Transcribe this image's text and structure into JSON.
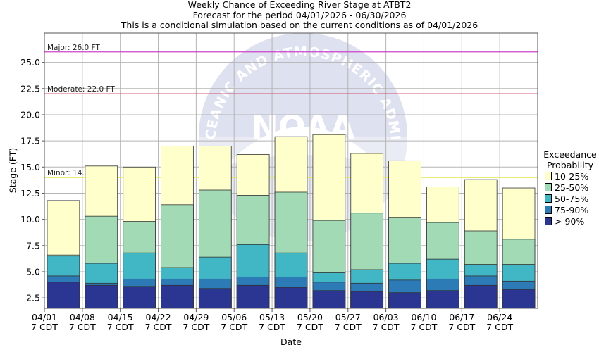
{
  "titles": {
    "line1": "Weekly Chance of Exceeding River Stage at ATBT2",
    "line2": "Forecast for the period 04/01/2026 - 06/30/2026",
    "line3": "This is a conditional simulation based on the current conditions as of 04/01/2026"
  },
  "watermark": {
    "text": "NATIONAL OCEANIC AND ATMOSPHERIC ADMINISTRATION",
    "logo": "NOAA"
  },
  "chart_data": {
    "type": "bar",
    "subtype": "stacked-exceedance",
    "xlabel": "Date",
    "ylabel": "Stage (FT)",
    "ylim": [
      1.5,
      27.8
    ],
    "yticks": [
      2.5,
      5.0,
      7.5,
      10.0,
      12.5,
      15.0,
      17.5,
      20.0,
      22.5,
      25.0
    ],
    "grid": true,
    "categories": [
      "04/01",
      "04/08",
      "04/15",
      "04/22",
      "04/29",
      "05/06",
      "05/13",
      "05/20",
      "05/27",
      "06/03",
      "06/10",
      "06/17",
      "06/24"
    ],
    "tick_sublabel": "7 CDT",
    "thresholds": [
      {
        "label": "Major: 26.0 FT",
        "value": 26.0,
        "color": "#cc44cc"
      },
      {
        "label": "Moderate: 22.0 FT",
        "value": 22.0,
        "color": "#cc2244"
      },
      {
        "label": "Minor: 14.0 FT",
        "value": 14.0,
        "color": "#e8e866"
      }
    ],
    "legend": {
      "title": [
        "Exceedance",
        "Probability"
      ],
      "position": "right"
    },
    "series": [
      {
        "name": "> 90%",
        "color": "#2b3592",
        "values": [
          4.0,
          3.7,
          3.6,
          3.7,
          3.4,
          3.7,
          3.5,
          3.2,
          3.1,
          3.0,
          3.2,
          3.7,
          3.3
        ]
      },
      {
        "name": "75-90%",
        "color": "#2c7bb6",
        "values": [
          4.6,
          3.9,
          4.3,
          4.3,
          4.3,
          4.5,
          4.5,
          4.0,
          3.9,
          4.2,
          4.3,
          4.6,
          4.1
        ]
      },
      {
        "name": "50-75%",
        "color": "#41b6c4",
        "values": [
          6.5,
          5.8,
          6.8,
          5.4,
          6.4,
          7.6,
          6.8,
          4.9,
          5.2,
          5.8,
          6.2,
          5.7,
          5.7
        ]
      },
      {
        "name": "25-50%",
        "color": "#a1dab4",
        "values": [
          6.6,
          10.3,
          9.8,
          11.4,
          12.8,
          12.3,
          12.6,
          9.9,
          10.6,
          10.2,
          9.7,
          8.9,
          8.1
        ]
      },
      {
        "name": "10-25%",
        "color": "#ffffcc",
        "values": [
          11.8,
          15.1,
          15.0,
          17.0,
          17.0,
          16.2,
          17.9,
          18.1,
          16.3,
          15.6,
          13.1,
          13.8,
          13.0
        ]
      }
    ]
  }
}
